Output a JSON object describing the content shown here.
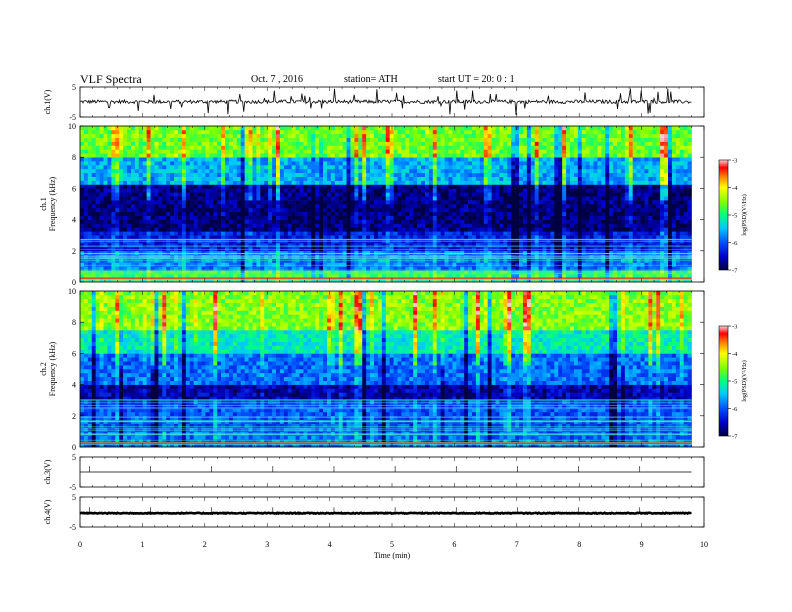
{
  "header": {
    "title": "VLF Spectra",
    "date": "Oct. 7 , 2016",
    "station": "station= ATH",
    "start": "start UT = 20: 0 : 1"
  },
  "chart_data": {
    "type": "heatmap",
    "title": "VLF Spectra",
    "xlabel": "Time (min)",
    "xlim": [
      0,
      10
    ],
    "x_ticks": [
      "0",
      "1",
      "2",
      "3",
      "4",
      "5",
      "6",
      "7",
      "8",
      "9",
      "10"
    ],
    "data_extent_min": 9.8,
    "grid": false,
    "panels": [
      {
        "id": "ch1-waveform",
        "type": "line",
        "ylabel": "ch.1(V)",
        "ylim": [
          -5,
          5
        ],
        "y_ticks": [
          "5",
          "-5"
        ],
        "baseline": 0.1,
        "noise_amplitude": 0.6,
        "color": "#000000"
      },
      {
        "id": "ch1-spectrogram",
        "type": "heatmap",
        "ylabel": "ch.1 Frequency (kHz)",
        "ylim": [
          0,
          10
        ],
        "y_ticks": [
          "0",
          "2",
          "4",
          "6",
          "8",
          "10"
        ],
        "bands": [
          {
            "f_lo": 0,
            "f_hi": 0.6,
            "log_psd": -4.8
          },
          {
            "f_lo": 0.6,
            "f_hi": 2.0,
            "log_psd": -5.8
          },
          {
            "f_lo": 2.0,
            "f_hi": 3.2,
            "log_psd": -6.3
          },
          {
            "f_lo": 3.2,
            "f_hi": 6.2,
            "log_psd": -6.8
          },
          {
            "f_lo": 6.2,
            "f_hi": 7.8,
            "log_psd": -5.6
          },
          {
            "f_lo": 7.8,
            "f_hi": 10,
            "log_psd": -4.6
          }
        ],
        "colorbar": {
          "label": "log(PSD)(V²/Hz)",
          "range": [
            -7,
            -3
          ],
          "ticks": [
            "-3",
            "-4",
            "-5",
            "-6",
            "-7"
          ]
        }
      },
      {
        "id": "ch2-spectrogram",
        "type": "heatmap",
        "ylabel": "ch.2 Frequency (kHz)",
        "ylim": [
          0,
          10
        ],
        "y_ticks": [
          "0",
          "2",
          "4",
          "6",
          "8",
          "10"
        ],
        "bands": [
          {
            "f_lo": 0,
            "f_hi": 1.0,
            "log_psd": -5.9
          },
          {
            "f_lo": 1.0,
            "f_hi": 3.0,
            "log_psd": -6.0
          },
          {
            "f_lo": 3.0,
            "f_hi": 4.0,
            "log_psd": -6.6
          },
          {
            "f_lo": 4.0,
            "f_hi": 5.8,
            "log_psd": -5.9
          },
          {
            "f_lo": 5.8,
            "f_hi": 7.5,
            "log_psd": -5.2
          },
          {
            "f_lo": 7.5,
            "f_hi": 10,
            "log_psd": -4.5
          }
        ],
        "colorbar": {
          "label": "log(PSD)(V²/Hz)",
          "range": [
            -7,
            -3
          ],
          "ticks": [
            "-3",
            "-4",
            "-5",
            "-6",
            "-7"
          ]
        }
      },
      {
        "id": "ch3-waveform",
        "type": "line",
        "ylabel": "ch.3(V)",
        "ylim": [
          -5,
          5
        ],
        "y_ticks": [
          "5",
          "-5"
        ],
        "baseline": 0,
        "noise_amplitude": 0,
        "color": "#000000"
      },
      {
        "id": "ch4-waveform",
        "type": "line",
        "ylabel": "ch.4(V)",
        "ylim": [
          -5,
          5
        ],
        "y_ticks": [
          "5",
          "-5"
        ],
        "baseline": -0.4,
        "noise_amplitude": 0.15,
        "color": "#000000"
      }
    ]
  }
}
